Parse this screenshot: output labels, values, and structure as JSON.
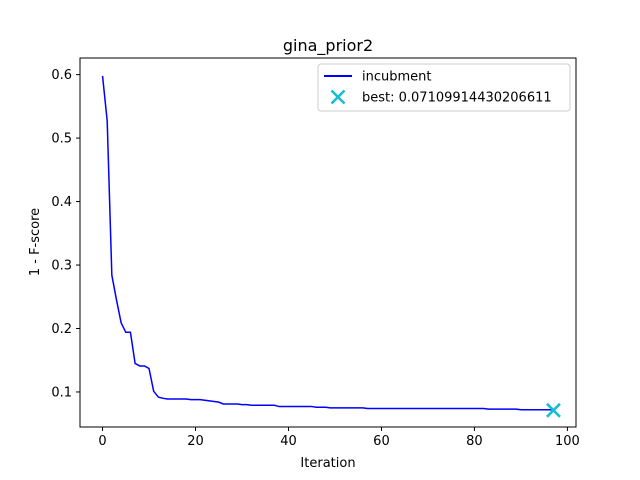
{
  "chart_data": {
    "type": "line",
    "title": "gina_prior2",
    "xlabel": "Iteration",
    "ylabel": "1 - F-score",
    "xlim": [
      -4.85,
      101.85
    ],
    "ylim": [
      0.0448,
      0.6262
    ],
    "xticks": [
      0,
      20,
      40,
      60,
      80,
      100
    ],
    "yticks": [
      0.1,
      0.2,
      0.3,
      0.4,
      0.5,
      0.6
    ],
    "xtick_labels": [
      "0",
      "20",
      "40",
      "60",
      "80",
      "100"
    ],
    "ytick_labels": [
      "0.1",
      "0.2",
      "0.3",
      "0.4",
      "0.5",
      "0.6"
    ],
    "grid": false,
    "legend_position": "top-right",
    "series": [
      {
        "name": "incubment",
        "color": "#0000ff",
        "style": "line",
        "x": [
          0,
          1,
          2,
          3,
          4,
          5,
          6,
          7,
          8,
          9,
          10,
          11,
          12,
          13,
          14,
          15,
          16,
          17,
          18,
          19,
          20,
          21,
          22,
          23,
          24,
          25,
          26,
          27,
          28,
          29,
          30,
          31,
          32,
          33,
          34,
          35,
          36,
          37,
          38,
          39,
          40,
          41,
          42,
          43,
          44,
          45,
          46,
          47,
          48,
          49,
          50,
          51,
          52,
          53,
          54,
          55,
          56,
          57,
          58,
          59,
          60,
          61,
          62,
          63,
          64,
          65,
          66,
          67,
          68,
          69,
          70,
          71,
          72,
          73,
          74,
          75,
          76,
          77,
          78,
          79,
          80,
          81,
          82,
          83,
          84,
          85,
          86,
          87,
          88,
          89,
          90,
          91,
          92,
          93,
          94,
          95,
          96,
          97
        ],
        "y": [
          0.598,
          0.527,
          0.284,
          0.245,
          0.209,
          0.194,
          0.194,
          0.145,
          0.141,
          0.141,
          0.137,
          0.101,
          0.092,
          0.09,
          0.089,
          0.089,
          0.089,
          0.089,
          0.089,
          0.088,
          0.088,
          0.088,
          0.087,
          0.086,
          0.085,
          0.084,
          0.081,
          0.081,
          0.081,
          0.081,
          0.08,
          0.08,
          0.079,
          0.079,
          0.079,
          0.079,
          0.079,
          0.079,
          0.077,
          0.077,
          0.077,
          0.077,
          0.077,
          0.077,
          0.077,
          0.077,
          0.076,
          0.076,
          0.076,
          0.075,
          0.075,
          0.075,
          0.075,
          0.075,
          0.075,
          0.075,
          0.075,
          0.074,
          0.074,
          0.074,
          0.074,
          0.074,
          0.074,
          0.074,
          0.074,
          0.074,
          0.074,
          0.074,
          0.074,
          0.074,
          0.074,
          0.074,
          0.074,
          0.074,
          0.074,
          0.074,
          0.074,
          0.074,
          0.074,
          0.074,
          0.074,
          0.074,
          0.074,
          0.073,
          0.073,
          0.073,
          0.073,
          0.073,
          0.073,
          0.073,
          0.072,
          0.072,
          0.072,
          0.072,
          0.072,
          0.072,
          0.072,
          0.072
        ]
      },
      {
        "name": "best: 0.07109914430206611",
        "color": "#17becf",
        "style": "marker-x",
        "x": [
          97
        ],
        "y": [
          0.07109914430206611
        ]
      }
    ]
  }
}
